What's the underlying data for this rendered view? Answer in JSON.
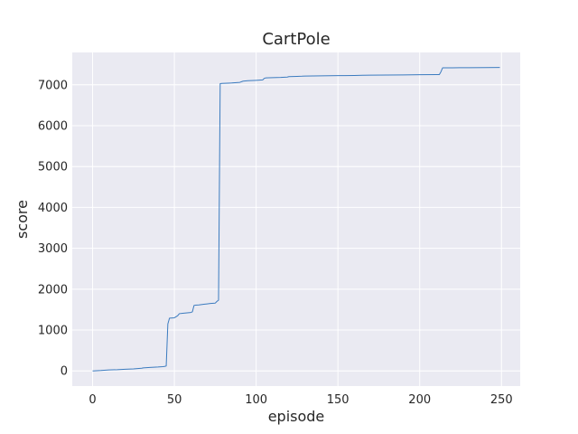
{
  "chart_data": {
    "type": "line",
    "title": "CartPole",
    "xlabel": "episode",
    "ylabel": "score",
    "xlim": [
      -12.45,
      261.45
    ],
    "ylim": [
      -371,
      7792
    ],
    "xticks": [
      0,
      50,
      100,
      150,
      200,
      250
    ],
    "yticks": [
      0,
      1000,
      2000,
      3000,
      4000,
      5000,
      6000,
      7000
    ],
    "grid": true,
    "legend": "none",
    "colors": {
      "line": "#3b7bbf",
      "plot_background": "#eaeaf2",
      "grid": "#ffffff"
    },
    "series": [
      {
        "x": [
          0,
          5,
          10,
          15,
          20,
          25,
          30,
          31,
          35,
          40,
          43,
          44,
          45,
          46,
          47,
          50,
          52,
          53,
          55,
          60,
          61,
          62,
          63,
          65,
          68,
          70,
          72,
          75,
          76,
          77,
          78,
          79,
          85,
          88,
          90,
          92,
          95,
          100,
          104,
          105,
          106,
          110,
          115,
          119,
          120,
          125,
          128,
          130,
          140,
          150,
          160,
          165,
          170,
          180,
          190,
          200,
          210,
          212,
          213,
          214,
          215,
          220,
          230,
          240,
          249
        ],
        "y": [
          0,
          10,
          25,
          30,
          40,
          50,
          65,
          75,
          85,
          95,
          105,
          110,
          120,
          1150,
          1290,
          1300,
          1350,
          1400,
          1410,
          1430,
          1445,
          1600,
          1610,
          1615,
          1630,
          1640,
          1650,
          1660,
          1700,
          1730,
          7030,
          7035,
          7045,
          7055,
          7060,
          7090,
          7100,
          7110,
          7120,
          7160,
          7170,
          7175,
          7180,
          7190,
          7200,
          7205,
          7210,
          7215,
          7220,
          7225,
          7228,
          7232,
          7235,
          7238,
          7242,
          7246,
          7250,
          7250,
          7320,
          7415,
          7415,
          7417,
          7420,
          7422,
          7425
        ]
      }
    ]
  }
}
